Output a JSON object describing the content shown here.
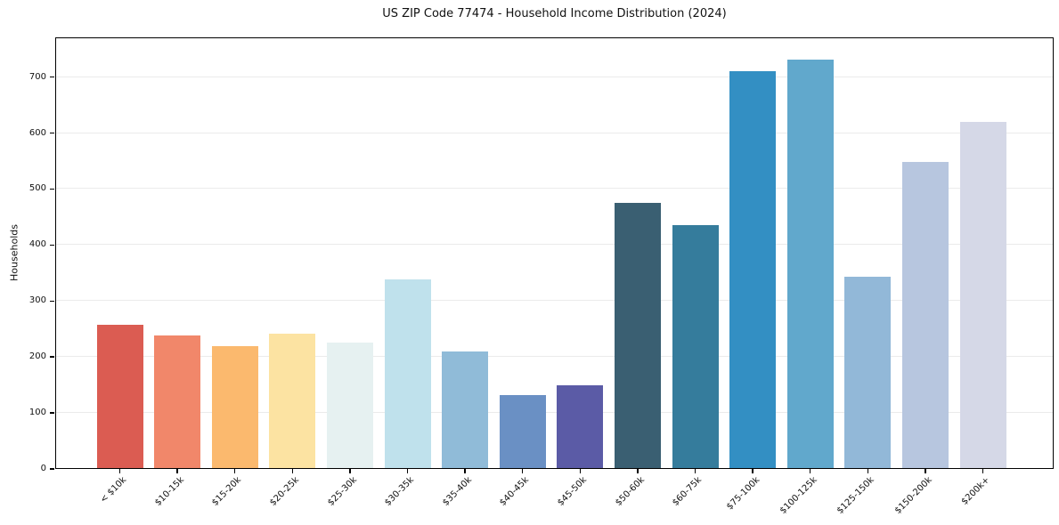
{
  "chart_data": {
    "type": "bar",
    "title": "US ZIP Code 77474 - Household Income Distribution (2024)",
    "xlabel": "",
    "ylabel": "Households",
    "categories": [
      "< $10k",
      "$10-15k",
      "$15-20k",
      "$20-25k",
      "$25-30k",
      "$30-35k",
      "$35-40k",
      "$40-45k",
      "$45-50k",
      "$50-60k",
      "$60-75k",
      "$75-100k",
      "$100-125k",
      "$125-150k",
      "$150-200k",
      "$200k+"
    ],
    "values": [
      258,
      239,
      220,
      242,
      226,
      338,
      210,
      132,
      150,
      475,
      435,
      710,
      731,
      344,
      548,
      620
    ],
    "bar_colors": [
      "#db5c52",
      "#f1876a",
      "#fbb96e",
      "#fce3a2",
      "#e6f1f1",
      "#bfe1ec",
      "#90bbd8",
      "#6a90c4",
      "#5b5ba6",
      "#3a5f72",
      "#357c9c",
      "#338fc3",
      "#61a8cc",
      "#92b8d8",
      "#b7c6df",
      "#d5d8e7"
    ],
    "ylim": [
      0,
      771
    ],
    "yticks": [
      0,
      100,
      200,
      300,
      400,
      500,
      600,
      700
    ],
    "grid": "horizontal",
    "legend": "none",
    "background": "#ffffff",
    "gridline_color": "#ebebeb",
    "axis_color": "#000000"
  }
}
